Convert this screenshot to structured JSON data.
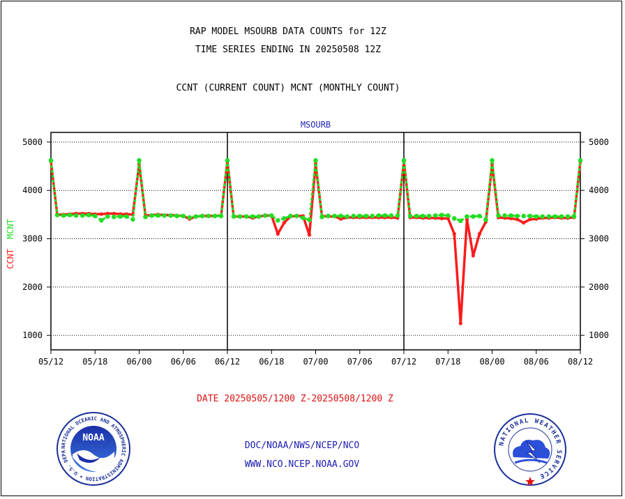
{
  "title_line1": "RAP MODEL MSOURB DATA COUNTS for 12Z",
  "title_line2": "TIME SERIES ENDING IN 20250508 12Z",
  "subtitle": "CCNT (CURRENT COUNT) MCNT (MONTHLY COUNT)",
  "date_range": "DATE 20250505/1200 Z-20250508/1200 Z",
  "footer": {
    "org_path": "DOC/NOAA/NWS/NCEP/NCO",
    "website": "WWW.NCO.NCEP.NOAA.GOV"
  },
  "logos": {
    "left": {
      "name": "noaa-logo",
      "center_text": "NOAA",
      "ring_text": "NATIONAL OCEANIC AND ATMOSPHERIC ADMINISTRATION • U.S. DEPARTMENT OF COMMERCE"
    },
    "right": {
      "name": "nws-logo",
      "ring_text": "NATIONAL WEATHER SERVICE"
    }
  },
  "colors": {
    "ccnt": "#ff1a1a",
    "mcnt": "#22dd22",
    "date_text": "#e01010",
    "footer_text": "#1a1ab0",
    "panel_title": "#2222bb"
  },
  "chart_data": {
    "type": "line",
    "panel_title": "MSOURB",
    "ylabel_series": [
      {
        "text": "CCNT",
        "color": "#ff1a1a"
      },
      {
        "text": "MCNT",
        "color": "#22dd22"
      }
    ],
    "ylim": [
      700,
      5200
    ],
    "yticks": [
      1000,
      2000,
      3000,
      4000,
      5000
    ],
    "xtick_labels": [
      "05/12",
      "05/18",
      "06/00",
      "06/06",
      "06/12",
      "06/18",
      "07/00",
      "07/06",
      "07/12",
      "07/18",
      "08/00",
      "08/06",
      "08/12"
    ],
    "grid": true,
    "series": [
      {
        "name": "CCNT",
        "color": "#ff1a1a",
        "values": [
          4600,
          3500,
          3500,
          3510,
          3520,
          3520,
          3520,
          3510,
          3510,
          3520,
          3520,
          3510,
          3510,
          3500,
          4550,
          3480,
          3490,
          3500,
          3490,
          3490,
          3480,
          3470,
          3410,
          3460,
          3470,
          3470,
          3470,
          3480,
          4600,
          3460,
          3460,
          3460,
          3430,
          3460,
          3480,
          3480,
          3100,
          3330,
          3460,
          3470,
          3470,
          3080,
          4550,
          3470,
          3460,
          3460,
          3410,
          3440,
          3440,
          3440,
          3440,
          3440,
          3440,
          3440,
          3440,
          3430,
          4600,
          3440,
          3440,
          3430,
          3430,
          3430,
          3420,
          3420,
          3100,
          1250,
          3400,
          2650,
          3100,
          3350,
          4550,
          3440,
          3430,
          3420,
          3400,
          3330,
          3400,
          3410,
          3430,
          3430,
          3440,
          3430,
          3430,
          3440,
          4600
        ]
      },
      {
        "name": "MCNT",
        "color": "#22dd22",
        "values": [
          4620,
          3490,
          3480,
          3490,
          3480,
          3480,
          3490,
          3470,
          3380,
          3460,
          3450,
          3460,
          3460,
          3400,
          4620,
          3450,
          3480,
          3480,
          3480,
          3480,
          3470,
          3470,
          3440,
          3460,
          3470,
          3470,
          3470,
          3470,
          4620,
          3460,
          3460,
          3460,
          3460,
          3460,
          3480,
          3480,
          3380,
          3420,
          3470,
          3470,
          3430,
          3390,
          4620,
          3450,
          3470,
          3470,
          3470,
          3460,
          3470,
          3470,
          3470,
          3470,
          3480,
          3480,
          3480,
          3480,
          4620,
          3470,
          3470,
          3470,
          3470,
          3480,
          3490,
          3480,
          3420,
          3370,
          3460,
          3460,
          3470,
          3390,
          4620,
          3480,
          3480,
          3480,
          3470,
          3470,
          3470,
          3460,
          3460,
          3460,
          3460,
          3460,
          3460,
          3460,
          4620
        ]
      }
    ]
  }
}
